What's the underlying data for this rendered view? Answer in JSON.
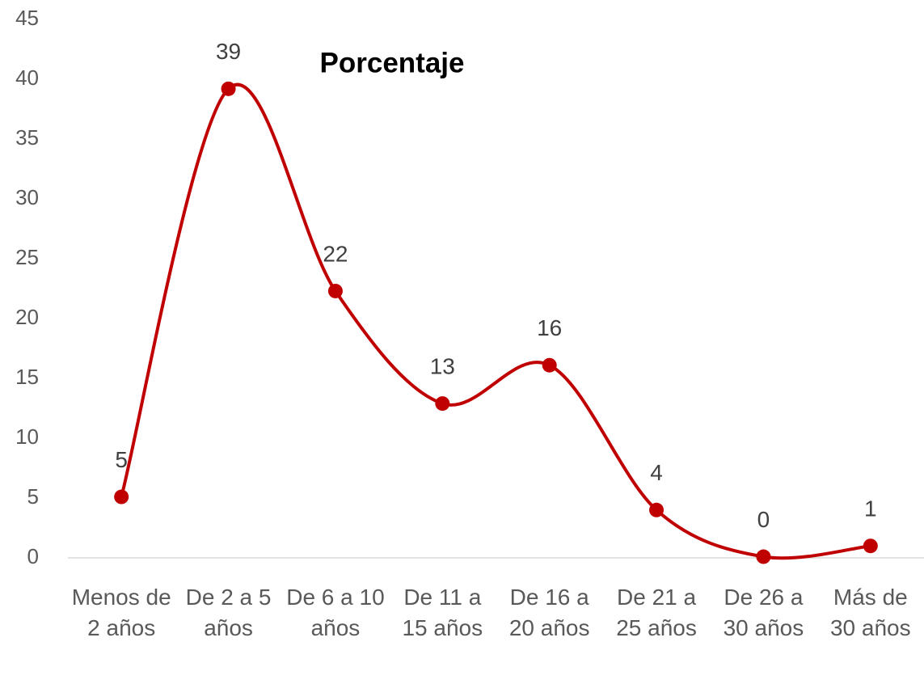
{
  "chart_data": {
    "type": "line",
    "title": "Porcentaje",
    "categories": [
      "Menos de 2 años",
      "De 2 a 5 años",
      "De 6 a 10 años",
      "De 11 a 15 años",
      "De 16 a 20 años",
      "De 21 a 25 años",
      "De 26 a 30 años",
      "Más de 30 años"
    ],
    "values": [
      5.1,
      39.2,
      22.3,
      12.9,
      16.1,
      4.0,
      0.1,
      1.0
    ],
    "value_labels": [
      "5",
      "39",
      "22",
      "13",
      "16",
      "4",
      "0",
      "1"
    ],
    "color": "#c00000",
    "smooth": true,
    "ylim": [
      0,
      45
    ],
    "yticks": [
      0,
      5,
      10,
      15,
      20,
      25,
      30,
      35,
      40,
      45
    ],
    "grid": false
  }
}
